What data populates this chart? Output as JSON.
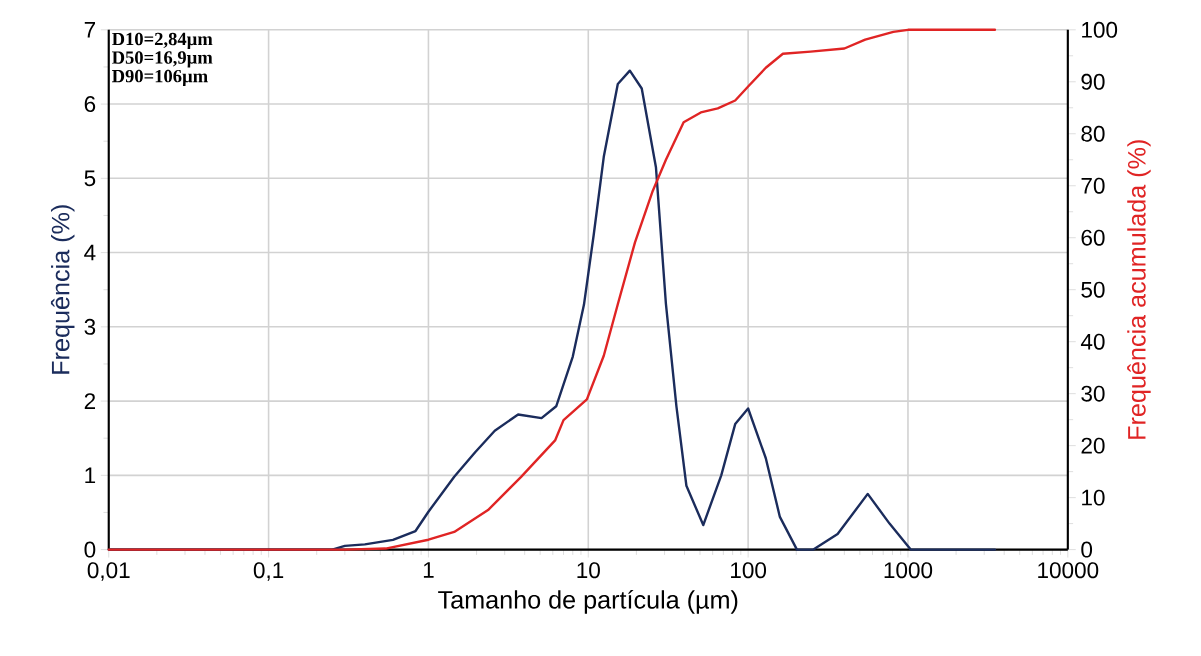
{
  "chart_data": {
    "type": "line",
    "xlabel": "Tamanho de partícula (µm)",
    "ylabel": "Frequência (%)",
    "y2label": "Frequência acumulada (%)",
    "annotations": [
      "D10=2,84µm",
      "D50=16,9µm",
      "D90=106µm"
    ],
    "log": "x",
    "grid": true,
    "xlim": [
      0.01,
      10000
    ],
    "xticks": [
      {
        "value": 0.01,
        "label": "0,01"
      },
      {
        "value": 0.1,
        "label": "0,1"
      },
      1,
      10,
      100,
      1000,
      10000
    ],
    "ylim": [
      0,
      7
    ],
    "yticks": [
      0,
      1,
      2,
      3,
      4,
      5,
      6,
      7
    ],
    "y2lim": [
      0,
      100
    ],
    "y2ticks": [
      0,
      10,
      20,
      30,
      40,
      50,
      60,
      70,
      80,
      90,
      100
    ],
    "series": [
      {
        "color": "#1b2c5c",
        "x": [
          0.01,
          0.25,
          0.3,
          0.4,
          0.6,
          0.83,
          1,
          1.45,
          1.96,
          2.6,
          3.64,
          5.1,
          6.3,
          8.0,
          9.4,
          10.8,
          12.5,
          15.3,
          18.2,
          21.6,
          26.5,
          30.6,
          35.6,
          41.1,
          52.4,
          67.9,
          83,
          100,
          129,
          158,
          202,
          256,
          363,
          560,
          767,
          1040,
          3500
        ],
        "values": [
          0,
          0,
          0.05,
          0.07,
          0.13,
          0.25,
          0.51,
          0.98,
          1.31,
          1.6,
          1.82,
          1.77,
          1.93,
          2.6,
          3.3,
          4.23,
          5.29,
          6.27,
          6.45,
          6.21,
          5.15,
          3.31,
          1.93,
          0.86,
          0.33,
          1.0,
          1.69,
          1.9,
          1.23,
          0.44,
          0,
          0,
          0.21,
          0.75,
          0.35,
          0,
          0
        ]
      },
      {
        "color": "#e02424",
        "axis": "y2",
        "x": [
          0.01,
          0.3,
          0.54,
          1,
          1.45,
          2.36,
          3.8,
          6.2,
          7.0,
          9.8,
          12.5,
          15.3,
          19.6,
          25.3,
          30.6,
          39.5,
          50.6,
          64.6,
          83,
          100,
          129,
          165,
          246,
          400,
          540,
          810,
          1000,
          3500
        ],
        "values": [
          0,
          0,
          0.2,
          1.9,
          3.4,
          7.6,
          14,
          21,
          24.9,
          28.9,
          37.3,
          47.2,
          59.1,
          69,
          75,
          82.2,
          84.1,
          84.9,
          86.4,
          89.1,
          92.7,
          95.4,
          95.8,
          96.4,
          98.1,
          99.6,
          100,
          100
        ]
      }
    ]
  }
}
